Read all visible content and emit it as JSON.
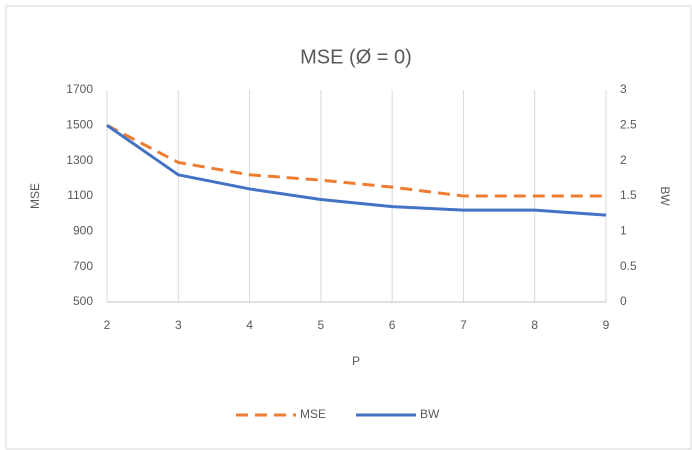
{
  "chart_data": {
    "type": "line",
    "title": "MSE (Ø = 0)",
    "x_label": "P",
    "y_label": "MSE",
    "y2_label": "BW",
    "x": [
      2,
      3,
      4,
      5,
      6,
      7,
      8,
      9
    ],
    "series": [
      {
        "name": "MSE",
        "color": "#ed7d31",
        "dashed": true,
        "values": [
          1500,
          1290,
          1220,
          1190,
          1150,
          1100,
          1100,
          1100
        ]
      },
      {
        "name": "BW",
        "color": "#4472c4",
        "axis": "y2",
        "values": [
          2.5,
          1.8,
          1.6,
          1.45,
          1.35,
          1.3,
          1.3,
          1.23
        ]
      }
    ],
    "xlim": [
      2,
      9
    ],
    "xticks": [
      2,
      3,
      4,
      5,
      6,
      7,
      8,
      9
    ],
    "ylim": [
      500,
      1700
    ],
    "yticks": [
      500,
      700,
      900,
      1100,
      1300,
      1500,
      1700
    ],
    "y2lim": [
      0,
      3
    ],
    "y2ticks": [
      0,
      0.5,
      1,
      1.5,
      2,
      2.5,
      3
    ],
    "grid": "x",
    "legend": "bottom"
  }
}
